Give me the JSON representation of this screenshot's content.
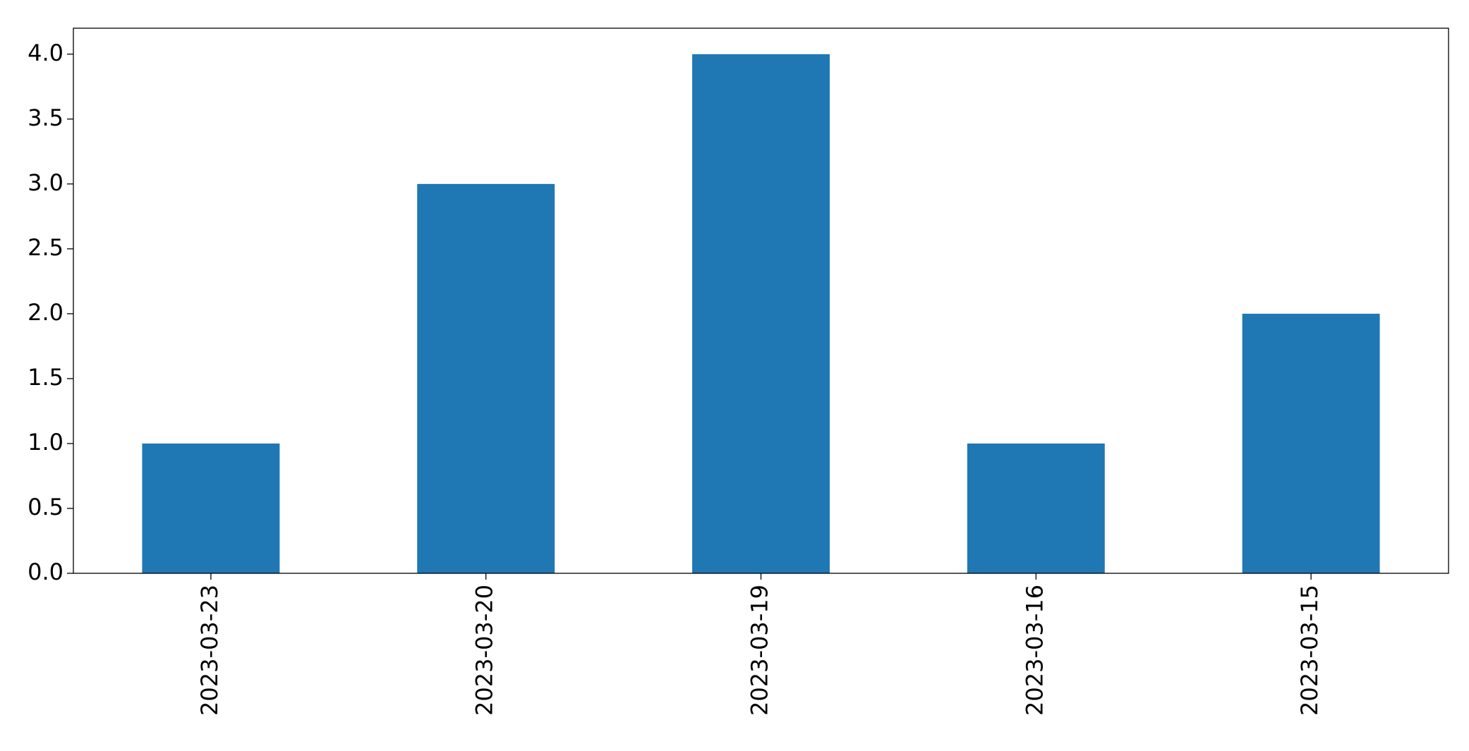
{
  "chart_data": {
    "type": "bar",
    "categories": [
      "2023-03-23",
      "2023-03-20",
      "2023-03-19",
      "2023-03-16",
      "2023-03-15"
    ],
    "values": [
      1,
      3,
      4,
      1,
      2
    ],
    "color": "#1f77b4",
    "ylim": [
      0,
      4.2
    ],
    "yticks": [
      {
        "value": 0,
        "label": "0.0"
      },
      0.5,
      {
        "value": 1,
        "label": "1.0"
      },
      1.5,
      {
        "value": 2,
        "label": "2.0"
      },
      2.5,
      {
        "value": 3,
        "label": "3.0"
      },
      3.5,
      {
        "value": 4,
        "label": "4.0"
      }
    ],
    "grid": false
  }
}
